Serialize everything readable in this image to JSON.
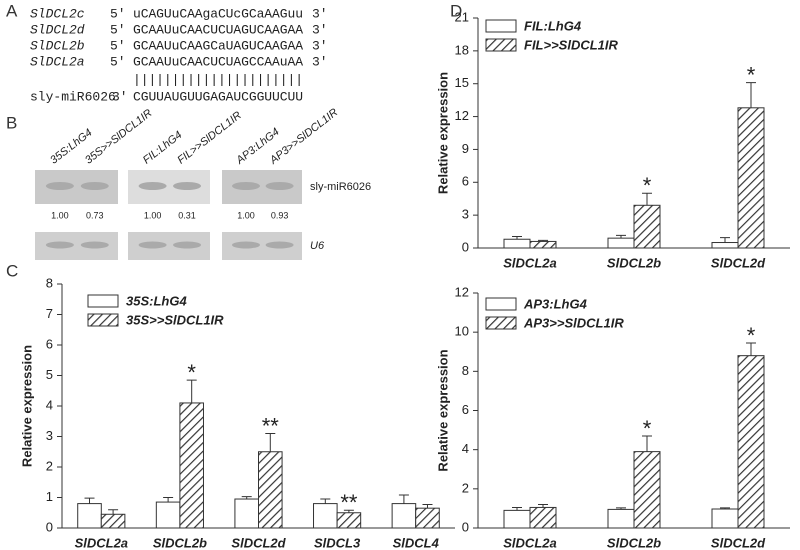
{
  "panel_labels": [
    "A",
    "B",
    "C",
    "D"
  ],
  "alignment": {
    "rows": [
      {
        "name": "SlDCL2c",
        "five": "5'",
        "seq": "uCAGUuCAAgaCUcGCaAAGuu",
        "three": "3'"
      },
      {
        "name": "SlDCL2d",
        "five": "5'",
        "seq": "GCAAUuCAACUCUAGUCAAGAA",
        "three": "3'"
      },
      {
        "name": "SlDCL2b",
        "five": "5'",
        "seq": "GCAAUuCAAGCaUAGUCAAGAA",
        "three": "3'"
      },
      {
        "name": "SlDCL2a",
        "five": "5'",
        "seq": "GCAAUuCAACUCUAGCCAAuAA",
        "three": "3'"
      }
    ],
    "pairing": "||||||||||||||||||||||",
    "mirna": {
      "name": "sly-miR6026",
      "three": "3'",
      "seq": "CGUUAUGUUGAGAUCGGUUCUU"
    }
  },
  "blot": {
    "groups": [
      {
        "labels": [
          "35S:LhG4",
          "35S>>SlDCL1IR"
        ],
        "values": [
          "1.00",
          "0.73"
        ]
      },
      {
        "labels": [
          "FIL:LhG4",
          "FIL>>SlDCL1IR"
        ],
        "values": [
          "1.00",
          "0.31"
        ]
      },
      {
        "labels": [
          "AP3:LhG4",
          "AP3>>SlDCL1IR"
        ],
        "values": [
          "1.00",
          "0.93"
        ]
      }
    ],
    "probe": "sly-miR6026",
    "control": "U6"
  },
  "chart_data": [
    {
      "type": "bar",
      "ylabel": "Relative expression",
      "categories": [
        "SlDCL2a",
        "SlDCL2b",
        "SlDCL2d",
        "SlDCL3",
        "SlDCL4"
      ],
      "series": [
        {
          "name": "35S:LhG4",
          "color": "#ffffff",
          "values": [
            0.8,
            0.85,
            0.95,
            0.8,
            0.8
          ],
          "errors": [
            0.18,
            0.15,
            0.08,
            0.15,
            0.28
          ]
        },
        {
          "name": "35S>>SlDCL1IR",
          "color": "hatch",
          "values": [
            0.45,
            4.1,
            2.5,
            0.5,
            0.65
          ],
          "errors": [
            0.15,
            0.75,
            0.6,
            0.08,
            0.12
          ]
        }
      ],
      "annotations": [
        {
          "text": "*",
          "index": 1
        },
        {
          "text": "**",
          "index": 2
        },
        {
          "text": "**",
          "index": 3
        }
      ],
      "ylim": [
        0,
        8
      ],
      "yticks": [
        0,
        1,
        2,
        3,
        4,
        5,
        6,
        7,
        8
      ],
      "legend": "top-left"
    },
    {
      "type": "bar",
      "ylabel": "Relative expression",
      "categories": [
        "SlDCL2a",
        "SlDCL2b",
        "SlDCL2d"
      ],
      "series": [
        {
          "name": "FIL:LhG4",
          "color": "#ffffff",
          "values": [
            0.8,
            0.9,
            0.5
          ],
          "errors": [
            0.25,
            0.25,
            0.45
          ]
        },
        {
          "name": "FIL>>SlDCL1IR",
          "color": "hatch",
          "values": [
            0.6,
            3.9,
            12.8
          ],
          "errors": [
            0.1,
            1.1,
            2.3
          ]
        }
      ],
      "annotations": [
        {
          "text": "*",
          "index": 1
        },
        {
          "text": "*",
          "index": 2
        }
      ],
      "ylim": [
        0,
        21
      ],
      "yticks": [
        0,
        3,
        6,
        9,
        12,
        15,
        18,
        21
      ],
      "legend": "top-left"
    },
    {
      "type": "bar",
      "ylabel": "Relative expression",
      "categories": [
        "SlDCL2a",
        "SlDCL2b",
        "SlDCL2d"
      ],
      "series": [
        {
          "name": "AP3:LhG4",
          "color": "#ffffff",
          "values": [
            0.9,
            0.95,
            0.97
          ],
          "errors": [
            0.15,
            0.08,
            0.06
          ]
        },
        {
          "name": "AP3>>SlDCL1IR",
          "color": "hatch",
          "values": [
            1.05,
            3.9,
            8.8
          ],
          "errors": [
            0.15,
            0.8,
            0.65
          ]
        }
      ],
      "annotations": [
        {
          "text": "*",
          "index": 1
        },
        {
          "text": "*",
          "index": 2
        }
      ],
      "ylim": [
        0,
        12
      ],
      "yticks": [
        0,
        2,
        4,
        6,
        8,
        10,
        12
      ],
      "legend": "top-left"
    }
  ]
}
